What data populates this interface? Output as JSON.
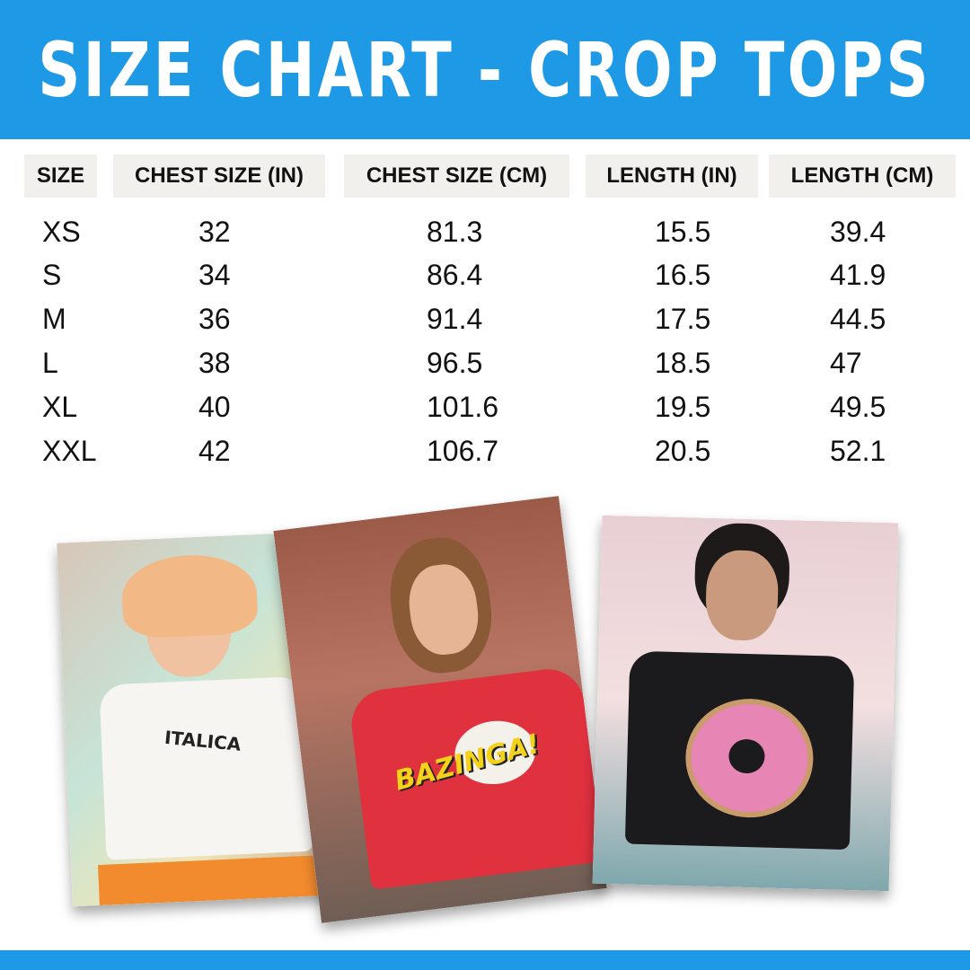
{
  "title": "SIZE CHART - CROP TOPS",
  "table": {
    "headers": [
      "SIZE",
      "CHEST SIZE (IN)",
      "CHEST SIZE (CM)",
      "LENGTH (IN)",
      "LENGTH (CM)"
    ],
    "rows": [
      [
        "XS",
        "32",
        "81.3",
        "15.5",
        "39.4"
      ],
      [
        "S",
        "34",
        "86.4",
        "16.5",
        "41.9"
      ],
      [
        "M",
        "36",
        "91.4",
        "17.5",
        "44.5"
      ],
      [
        "L",
        "38",
        "96.5",
        "18.5",
        "47"
      ],
      [
        "XL",
        "40",
        "101.6",
        "19.5",
        "49.5"
      ],
      [
        "XXL",
        "42",
        "106.7",
        "20.5",
        "52.1"
      ]
    ]
  },
  "photos": [
    {
      "shirt_print": "ITALICA",
      "shirt_color": "#f7f5f2"
    },
    {
      "shirt_print": "BAZINGA!",
      "shirt_color": "#e0313f"
    },
    {
      "shirt_print": "",
      "shirt_color": "#1b1b1d"
    }
  ],
  "colors": {
    "brand_blue": "#1d99e5",
    "header_bg": "#f1f0ec"
  }
}
